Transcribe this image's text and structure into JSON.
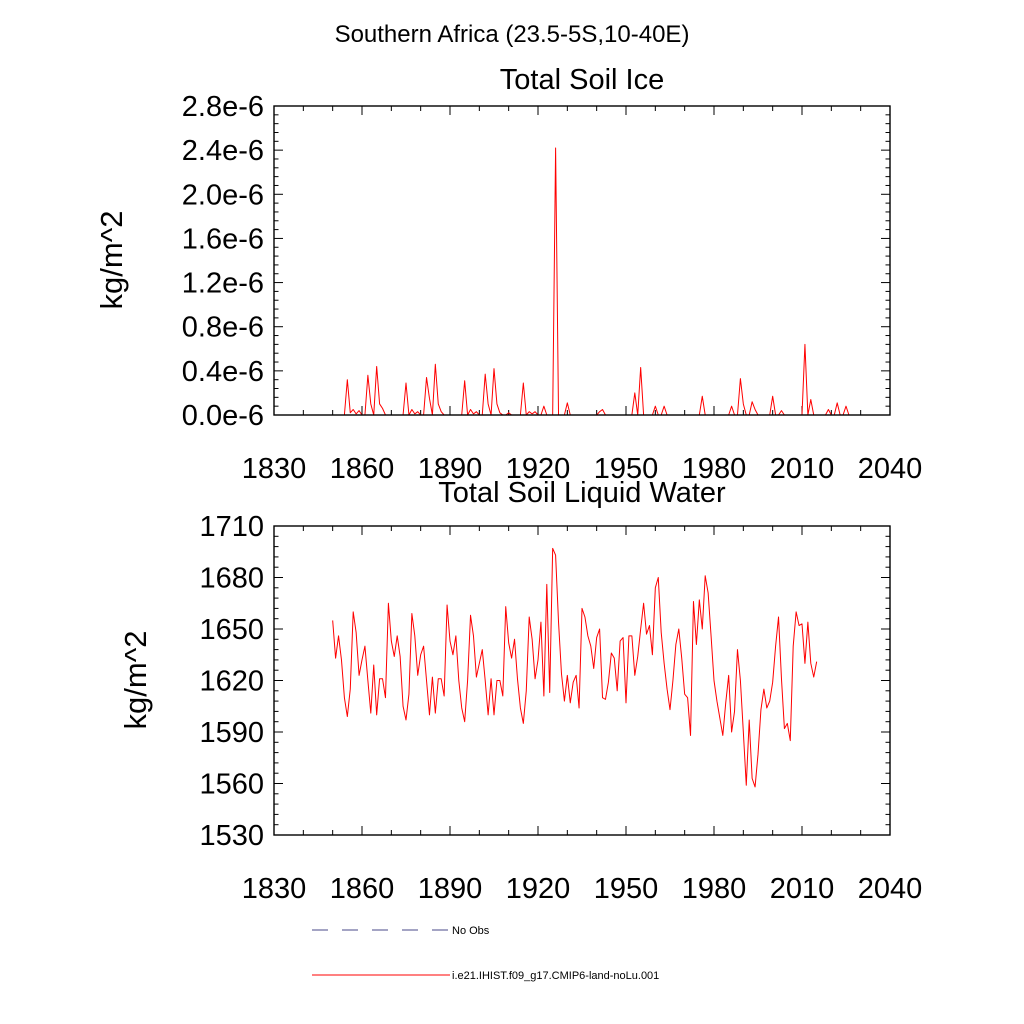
{
  "figure_title": "Southern Africa (23.5-5S,10-40E)",
  "colors": {
    "model": "#ff0000",
    "obs": "#4a4a8a",
    "frame": "#000000"
  },
  "legend": {
    "obs_label": "No Obs",
    "model_label": "i.e21.IHIST.f09_g17.CMIP6-land-noLu.001"
  },
  "chart_data": [
    {
      "type": "line",
      "title": "Total Soil Ice",
      "xlabel": "",
      "ylabel": "kg/m^2",
      "xlim": [
        1830,
        2040
      ],
      "ylim": [
        0,
        2.8e-06
      ],
      "x_ticks": [
        1830,
        1860,
        1890,
        1920,
        1950,
        1980,
        2010,
        2040
      ],
      "x_tick_labels": [
        "1830",
        "1860",
        "1890",
        "1920",
        "1950",
        "1980",
        "2010",
        "2040"
      ],
      "y_ticks": [
        0,
        4e-07,
        8e-07,
        1.2e-06,
        1.6e-06,
        2e-06,
        2.4e-06,
        2.8e-06
      ],
      "y_tick_labels": [
        "0.0e-6",
        "0.4e-6",
        "0.8e-6",
        "1.2e-6",
        "1.6e-6",
        "2.0e-6",
        "2.4e-6",
        "2.8e-6"
      ],
      "grid": false,
      "legend": "none",
      "series": [
        {
          "name": "i.e21.IHIST.f09_g17.CMIP6-land-noLu.001",
          "x_start": 1850,
          "x_step": 1,
          "values": [
            0,
            0,
            0,
            0,
            0,
            3.2e-07,
            2e-08,
            5e-08,
            1e-08,
            4e-08,
            0,
            0,
            3.6e-07,
            1e-07,
            0,
            4.4e-07,
            1e-07,
            6e-08,
            0,
            0,
            0,
            0,
            0,
            0,
            0,
            2.9e-07,
            0,
            5e-08,
            1e-08,
            3e-08,
            0,
            0,
            3.4e-07,
            1.5e-07,
            0,
            4.6e-07,
            1e-07,
            3e-08,
            0,
            0,
            0,
            0,
            0,
            0,
            0,
            3.1e-07,
            0,
            5e-08,
            1e-08,
            3e-08,
            0,
            0,
            3.7e-07,
            1e-07,
            0,
            4.2e-07,
            1e-07,
            2e-08,
            0,
            0,
            2e-08,
            0,
            0,
            0,
            0,
            2.9e-07,
            0,
            3e-08,
            1e-08,
            3e-08,
            0,
            0,
            8e-08,
            0,
            0,
            0,
            2.42e-06,
            0,
            0,
            0,
            1.1e-07,
            0,
            0,
            0,
            0,
            0,
            0,
            0,
            0,
            0,
            0,
            3e-08,
            5e-08,
            0,
            0,
            0,
            0,
            0,
            0,
            0,
            0,
            0,
            0,
            2e-07,
            0,
            4.3e-07,
            0,
            0,
            0,
            0,
            8e-08,
            0,
            0,
            8e-08,
            0,
            0,
            0,
            0,
            0,
            0,
            0,
            0,
            0,
            0,
            0,
            0,
            1.7e-07,
            0,
            0,
            0,
            0,
            0,
            0,
            0,
            0,
            0,
            8e-08,
            0,
            0,
            3.3e-07,
            1e-07,
            0,
            0,
            1.2e-07,
            5e-08,
            0,
            0,
            0,
            0,
            0,
            1.7e-07,
            0,
            0,
            4e-08,
            0,
            0,
            0,
            0,
            0,
            0,
            0,
            6.4e-07,
            0,
            1.4e-07,
            0,
            0,
            0,
            0,
            0,
            5e-08,
            0,
            0,
            1.1e-07,
            0,
            0,
            8e-08,
            0,
            0,
            0,
            0,
            0,
            0,
            0,
            0,
            0
          ]
        }
      ]
    },
    {
      "type": "line",
      "title": "Total Soil Liquid Water",
      "xlabel": "",
      "ylabel": "kg/m^2",
      "xlim": [
        1830,
        2040
      ],
      "ylim": [
        1530,
        1710
      ],
      "x_ticks": [
        1830,
        1860,
        1890,
        1920,
        1950,
        1980,
        2010,
        2040
      ],
      "x_tick_labels": [
        "1830",
        "1860",
        "1890",
        "1920",
        "1950",
        "1980",
        "2010",
        "2040"
      ],
      "y_ticks": [
        1530,
        1560,
        1590,
        1620,
        1650,
        1680,
        1710
      ],
      "y_tick_labels": [
        "1530",
        "1560",
        "1590",
        "1620",
        "1650",
        "1680",
        "1710"
      ],
      "grid": false,
      "legend": "none",
      "series": [
        {
          "name": "i.e21.IHIST.f09_g17.CMIP6-land-noLu.001",
          "x_start": 1850,
          "x_step": 1,
          "values": [
            1655,
            1633,
            1646,
            1632,
            1610,
            1599,
            1615,
            1660,
            1648,
            1623,
            1632,
            1640,
            1620,
            1601,
            1629,
            1600,
            1621,
            1621,
            1610,
            1665,
            1643,
            1634,
            1646,
            1634,
            1605,
            1597,
            1612,
            1659,
            1646,
            1623,
            1635,
            1640,
            1620,
            1600,
            1622,
            1601,
            1621,
            1621,
            1611,
            1664,
            1643,
            1635,
            1646,
            1620,
            1604,
            1596,
            1620,
            1658,
            1646,
            1622,
            1630,
            1638,
            1620,
            1600,
            1621,
            1600,
            1620,
            1620,
            1611,
            1663,
            1642,
            1633,
            1644,
            1621,
            1604,
            1595,
            1614,
            1657,
            1644,
            1621,
            1632,
            1654,
            1611,
            1676,
            1613,
            1697,
            1693,
            1654,
            1624,
            1608,
            1623,
            1607,
            1619,
            1623,
            1604,
            1662,
            1657,
            1646,
            1640,
            1627,
            1645,
            1650,
            1610,
            1609,
            1619,
            1636,
            1633,
            1614,
            1643,
            1645,
            1607,
            1646,
            1646,
            1623,
            1634,
            1650,
            1665,
            1647,
            1652,
            1635,
            1674,
            1680,
            1648,
            1630,
            1615,
            1603,
            1620,
            1641,
            1650,
            1633,
            1612,
            1610,
            1588,
            1666,
            1641,
            1667,
            1650,
            1681,
            1671,
            1646,
            1620,
            1608,
            1598,
            1588,
            1607,
            1623,
            1590,
            1602,
            1638,
            1620,
            1590,
            1559,
            1597,
            1563,
            1558,
            1577,
            1603,
            1615,
            1604,
            1608,
            1619,
            1640,
            1657,
            1621,
            1592,
            1595,
            1585,
            1640,
            1660,
            1652,
            1653,
            1630,
            1654,
            1630,
            1622,
            1631
          ]
        }
      ]
    }
  ]
}
